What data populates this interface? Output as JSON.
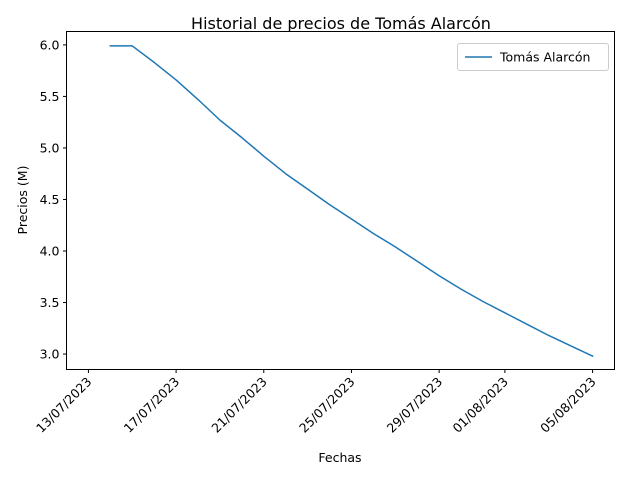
{
  "chart_data": {
    "type": "line",
    "title": "Historial de precios de Tomás Alarcón",
    "xlabel": "Fechas",
    "ylabel": "Precios (M)",
    "x_axis": {
      "type": "date",
      "ticks": [
        "13/07/2023",
        "17/07/2023",
        "21/07/2023",
        "25/07/2023",
        "29/07/2023",
        "01/08/2023",
        "05/08/2023"
      ],
      "xlim": [
        "12/07/2023",
        "06/08/2023"
      ]
    },
    "ylim": [
      2.85,
      6.13
    ],
    "yticks": [
      "3.0",
      "3.5",
      "4.0",
      "4.5",
      "5.0",
      "5.5",
      "6.0"
    ],
    "grid": false,
    "legend": {
      "placement": "top-right",
      "entries": [
        "Tomás Alarcón"
      ]
    },
    "series": [
      {
        "name": "Tomás Alarcón",
        "color": "#1f77b4",
        "points": [
          {
            "x": "14/07/2023",
            "y": 5.99
          },
          {
            "x": "15/07/2023",
            "y": 5.99
          },
          {
            "x": "16/07/2023",
            "y": 5.83
          },
          {
            "x": "17/07/2023",
            "y": 5.66
          },
          {
            "x": "18/07/2023",
            "y": 5.47
          },
          {
            "x": "19/07/2023",
            "y": 5.27
          },
          {
            "x": "20/07/2023",
            "y": 5.1
          },
          {
            "x": "21/07/2023",
            "y": 4.92
          },
          {
            "x": "22/07/2023",
            "y": 4.75
          },
          {
            "x": "23/07/2023",
            "y": 4.6
          },
          {
            "x": "24/07/2023",
            "y": 4.45
          },
          {
            "x": "25/07/2023",
            "y": 4.31
          },
          {
            "x": "26/07/2023",
            "y": 4.17
          },
          {
            "x": "27/07/2023",
            "y": 4.04
          },
          {
            "x": "28/07/2023",
            "y": 3.9
          },
          {
            "x": "29/07/2023",
            "y": 3.76
          },
          {
            "x": "30/07/2023",
            "y": 3.63
          },
          {
            "x": "31/07/2023",
            "y": 3.51
          },
          {
            "x": "01/08/2023",
            "y": 3.4
          },
          {
            "x": "02/08/2023",
            "y": 3.29
          },
          {
            "x": "03/08/2023",
            "y": 3.18
          },
          {
            "x": "04/08/2023",
            "y": 3.08
          },
          {
            "x": "05/08/2023",
            "y": 2.98
          }
        ]
      }
    ]
  }
}
